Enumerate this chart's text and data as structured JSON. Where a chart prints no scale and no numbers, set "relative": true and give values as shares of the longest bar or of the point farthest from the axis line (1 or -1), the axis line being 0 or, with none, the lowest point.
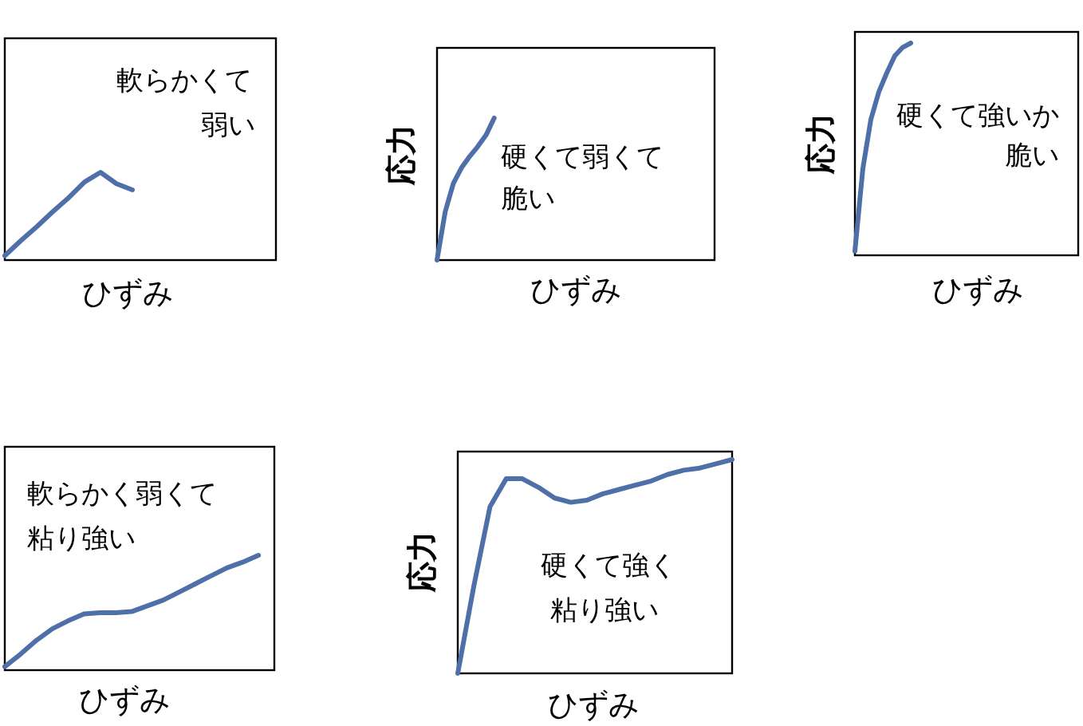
{
  "chart_data": [
    {
      "type": "line",
      "relative": true,
      "xlabel": "ひずみ",
      "categories": [
        null,
        null,
        null,
        null,
        null,
        null,
        null,
        null,
        null,
        null,
        null,
        null,
        null,
        null,
        null,
        null,
        null,
        null
      ],
      "series": [
        {
          "color": "#4f6fa8",
          "values": [
            0.05,
            0.22,
            0.38,
            0.55,
            0.71,
            0.89,
            1,
            0.87,
            0.8,
            null,
            null,
            null,
            null,
            null,
            null,
            null,
            null,
            null
          ]
        }
      ],
      "annotations": [
        "軟らかくて",
        "弱い"
      ]
    },
    {
      "type": "line",
      "relative": true,
      "xlabel": "ひずみ",
      "ylabel": "応力",
      "categories": [
        null,
        null,
        null,
        null,
        null,
        null,
        null,
        null,
        null,
        null,
        null,
        null,
        null,
        null,
        null,
        null,
        null,
        null,
        null,
        null,
        null,
        null,
        null,
        null,
        null,
        null,
        null,
        null,
        null,
        null,
        null,
        null,
        null,
        null,
        null
      ],
      "series": [
        {
          "color": "#4f6fa8",
          "values": [
            0,
            0.34,
            0.54,
            0.65,
            0.73,
            0.8,
            0.88,
            1,
            null,
            null,
            null,
            null,
            null,
            null,
            null,
            null,
            null,
            null,
            null,
            null,
            null,
            null,
            null,
            null,
            null,
            null,
            null,
            null,
            null,
            null,
            null,
            null,
            null,
            null,
            null
          ]
        }
      ],
      "annotations": [
        "硬くて弱くて",
        "脆い"
      ]
    },
    {
      "type": "line",
      "relative": true,
      "xlabel": "ひずみ",
      "ylabel": "応力",
      "categories": [
        null,
        null,
        null,
        null,
        null,
        null,
        null,
        null,
        null,
        null,
        null,
        null,
        null,
        null,
        null,
        null,
        null,
        null,
        null,
        null,
        null,
        null,
        null,
        null,
        null,
        null,
        null,
        null,
        null
      ],
      "series": [
        {
          "color": "#4f6fa8",
          "values": [
            0.02,
            0.41,
            0.64,
            0.77,
            0.86,
            0.94,
            0.98,
            1,
            null,
            null,
            null,
            null,
            null,
            null,
            null,
            null,
            null,
            null,
            null,
            null,
            null,
            null,
            null,
            null,
            null,
            null,
            null,
            null,
            null
          ]
        }
      ],
      "annotations": [
        "硬くて強いか",
        "脆い"
      ]
    },
    {
      "type": "line",
      "relative": true,
      "xlabel": "ひずみ",
      "categories": [
        null,
        null,
        null,
        null,
        null,
        null,
        null,
        null,
        null,
        null,
        null,
        null,
        null,
        null,
        null,
        null,
        null,
        null
      ],
      "series": [
        {
          "color": "#4f6fa8",
          "values": [
            0.03,
            0.14,
            0.26,
            0.36,
            0.43,
            0.49,
            0.5,
            0.5,
            0.51,
            0.56,
            0.61,
            0.68,
            0.75,
            0.82,
            0.89,
            0.94,
            1,
            null
          ]
        }
      ],
      "annotations": [
        "軟らかく弱くて",
        "粘り強い"
      ]
    },
    {
      "type": "line",
      "relative": true,
      "xlabel": "ひずみ",
      "ylabel": "応力",
      "categories": [
        null,
        null,
        null,
        null,
        null,
        null,
        null,
        null,
        null,
        null,
        null,
        null,
        null,
        null,
        null,
        null,
        null,
        null
      ],
      "series": [
        {
          "color": "#4f6fa8",
          "values": [
            0,
            0.41,
            0.78,
            0.91,
            0.91,
            0.87,
            0.82,
            0.8,
            0.81,
            0.84,
            0.86,
            0.88,
            0.9,
            0.93,
            0.95,
            0.96,
            0.98,
            1
          ]
        }
      ],
      "annotations": [
        "硬くて強く",
        "粘り強い"
      ]
    }
  ]
}
